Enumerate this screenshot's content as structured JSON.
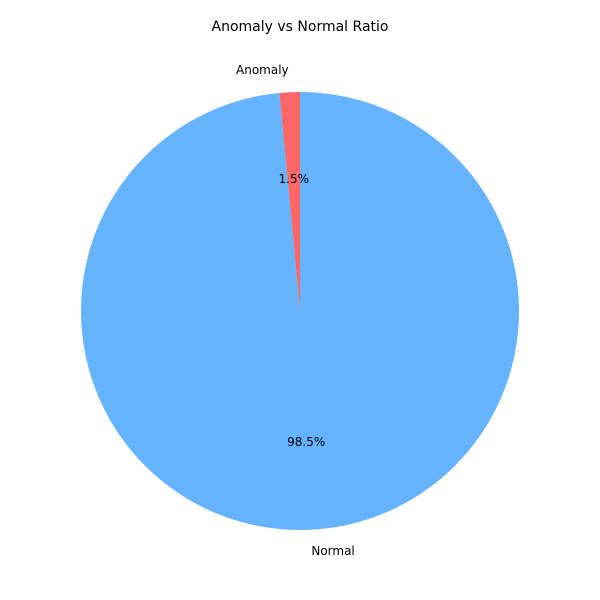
{
  "chart_data": {
    "type": "pie",
    "title": "Anomaly vs Normal Ratio",
    "slices": [
      {
        "label": "Anomaly",
        "value": 1.5,
        "pct_label": "1.5%",
        "color": "#ff6666"
      },
      {
        "label": "Normal",
        "value": 98.5,
        "pct_label": "98.5%",
        "color": "#66b3ff"
      }
    ],
    "start_angle_deg": 90,
    "direction": "counterclockwise",
    "legend": "none"
  }
}
